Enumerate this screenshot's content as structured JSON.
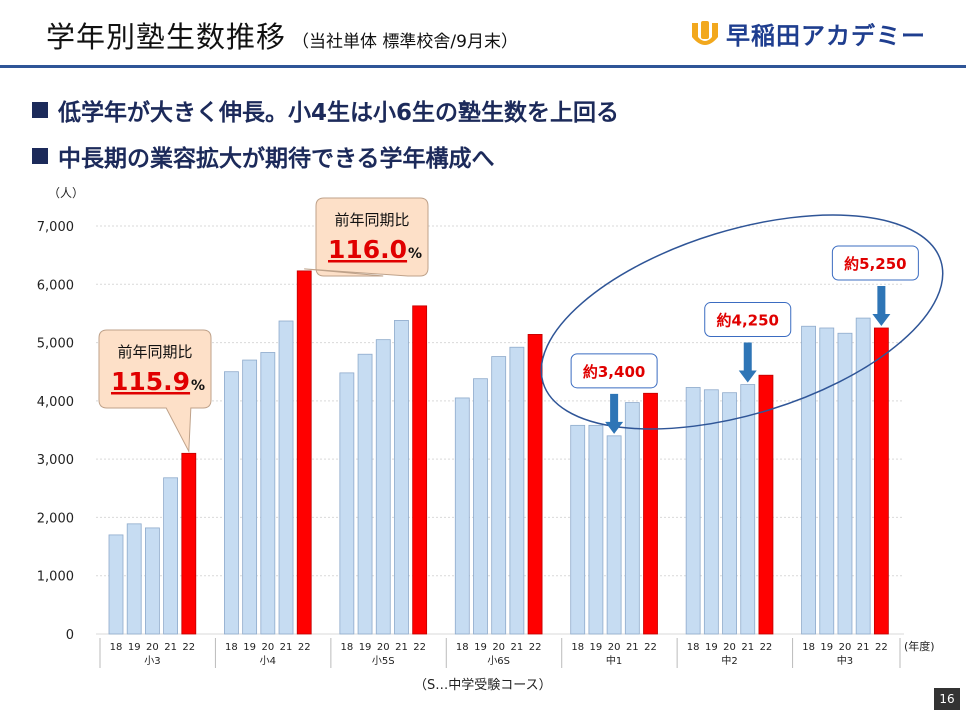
{
  "header": {
    "title": "学年別塾生数推移",
    "subtitle": "（当社単体 標準校舎/9月末）",
    "logo_text": "早稲田アカデミー"
  },
  "bullets": [
    "低学年が大きく伸長。小4生は小6生の塾生数を上回る",
    "中長期の業容拡大が期待できる学年構成へ"
  ],
  "chart_data": {
    "type": "bar",
    "y_unit_label": "（人）",
    "x_unit_label": "(年度)",
    "ylim": [
      0,
      7000
    ],
    "yticks": [
      0,
      1000,
      2000,
      3000,
      4000,
      5000,
      6000,
      7000
    ],
    "ytick_labels": [
      "0",
      "1,000",
      "2,000",
      "3,000",
      "4,000",
      "5,000",
      "6,000",
      "7,000"
    ],
    "grid": true,
    "year_labels": [
      "18",
      "19",
      "20",
      "21",
      "22"
    ],
    "groups": [
      {
        "label": "小3",
        "values": [
          1700,
          1890,
          1820,
          2680,
          3100
        ]
      },
      {
        "label": "小4",
        "values": [
          4500,
          4700,
          4830,
          5370,
          6230
        ]
      },
      {
        "label": "小5S",
        "values": [
          4480,
          4800,
          5050,
          5380,
          5630
        ]
      },
      {
        "label": "小6S",
        "values": [
          4050,
          4380,
          4760,
          4920,
          5140
        ]
      },
      {
        "label": "中1",
        "values": [
          3580,
          3580,
          3400,
          3970,
          4130
        ]
      },
      {
        "label": "中2",
        "values": [
          4230,
          4190,
          4140,
          4280,
          4440
        ]
      },
      {
        "label": "中3",
        "values": [
          5280,
          5250,
          5160,
          5420,
          5250
        ]
      }
    ],
    "highlight_color": "#ff0000",
    "bar_color": "#c6dcf2",
    "callouts": [
      {
        "group": 0,
        "label": "前年同期比",
        "value": "115.9",
        "unit": "%"
      },
      {
        "group": 1,
        "label": "前年同期比",
        "value": "116.0",
        "unit": "%"
      }
    ],
    "forecasts": [
      {
        "group": 4,
        "bar": 2,
        "label": "約3,400"
      },
      {
        "group": 5,
        "bar": 3,
        "label": "約4,250"
      },
      {
        "group": 6,
        "bar": 4,
        "label": "約5,250"
      }
    ]
  },
  "footnote": "（S…中学受験コース）",
  "page_number": "16"
}
